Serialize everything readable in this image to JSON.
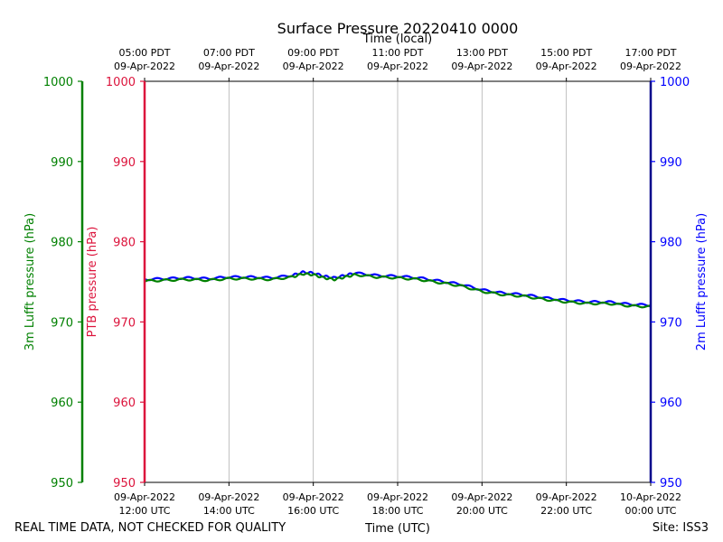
{
  "chart_data": {
    "type": "line",
    "title": "Surface Pressure 20220410 0000",
    "xlabel": "Time (UTC)",
    "top_xlabel": "Time (local)",
    "footer_left": "REAL TIME DATA, NOT CHECKED FOR QUALITY",
    "footer_right": "Site: ISS3",
    "x_range_hours": [
      0,
      12
    ],
    "bottom_ticks": [
      {
        "hour": 0,
        "date": "09-Apr-2022",
        "time": "12:00 UTC"
      },
      {
        "hour": 2,
        "date": "09-Apr-2022",
        "time": "14:00 UTC"
      },
      {
        "hour": 4,
        "date": "09-Apr-2022",
        "time": "16:00 UTC"
      },
      {
        "hour": 6,
        "date": "09-Apr-2022",
        "time": "18:00 UTC"
      },
      {
        "hour": 8,
        "date": "09-Apr-2022",
        "time": "20:00 UTC"
      },
      {
        "hour": 10,
        "date": "09-Apr-2022",
        "time": "22:00 UTC"
      },
      {
        "hour": 12,
        "date": "10-Apr-2022",
        "time": "00:00 UTC"
      }
    ],
    "top_ticks": [
      {
        "hour": 0,
        "time": "05:00 PDT",
        "date": "09-Apr-2022"
      },
      {
        "hour": 2,
        "time": "07:00 PDT",
        "date": "09-Apr-2022"
      },
      {
        "hour": 4,
        "time": "09:00 PDT",
        "date": "09-Apr-2022"
      },
      {
        "hour": 6,
        "time": "11:00 PDT",
        "date": "09-Apr-2022"
      },
      {
        "hour": 8,
        "time": "13:00 PDT",
        "date": "09-Apr-2022"
      },
      {
        "hour": 10,
        "time": "15:00 PDT",
        "date": "09-Apr-2022"
      },
      {
        "hour": 12,
        "time": "17:00 PDT",
        "date": "09-Apr-2022"
      }
    ],
    "y_axes": [
      {
        "name": "3m Lufft pressure (hPa)",
        "side": "far-left",
        "color": "#008000",
        "ylim": [
          950,
          1000
        ],
        "ticks": [
          950,
          960,
          970,
          980,
          990,
          1000
        ]
      },
      {
        "name": "PTB pressure (hPa)",
        "side": "left",
        "color": "#dc143c",
        "ylim": [
          950,
          1000
        ],
        "ticks": [
          950,
          960,
          970,
          980,
          990,
          1000
        ]
      },
      {
        "name": "2m Lufft pressure (hPa)",
        "side": "right",
        "color": "#0000ff",
        "ylim": [
          950,
          1000
        ],
        "ticks": [
          950,
          960,
          970,
          980,
          990,
          1000
        ]
      }
    ],
    "grid": "vertical",
    "series": [
      {
        "name": "2m Lufft pressure",
        "color": "#0000ff",
        "x": [
          0,
          0.5,
          1,
          1.5,
          2,
          2.5,
          3,
          3.5,
          3.75,
          4,
          4.25,
          4.5,
          4.75,
          5,
          5.5,
          6,
          6.5,
          7,
          7.5,
          8,
          8.5,
          9,
          9.5,
          10,
          10.5,
          11,
          11.5,
          12
        ],
        "y": [
          975.3,
          975.4,
          975.5,
          975.4,
          975.6,
          975.6,
          975.5,
          975.8,
          976.2,
          976.1,
          975.7,
          975.5,
          975.8,
          976.1,
          975.8,
          975.7,
          975.5,
          975.1,
          974.7,
          974.0,
          973.6,
          973.4,
          973.0,
          972.7,
          972.5,
          972.5,
          972.2,
          972.1
        ]
      },
      {
        "name": "3m Lufft pressure",
        "color": "#008000",
        "x": [
          0,
          0.5,
          1,
          1.5,
          2,
          2.5,
          3,
          3.5,
          3.75,
          4,
          4.25,
          4.5,
          4.75,
          5,
          5.5,
          6,
          6.5,
          7,
          7.5,
          8,
          8.5,
          9,
          9.5,
          10,
          10.5,
          11,
          11.5,
          12
        ],
        "y": [
          975.1,
          975.2,
          975.3,
          975.2,
          975.4,
          975.4,
          975.3,
          975.6,
          976.0,
          975.9,
          975.5,
          975.3,
          975.6,
          975.9,
          975.6,
          975.5,
          975.3,
          974.9,
          974.5,
          973.8,
          973.4,
          973.2,
          972.8,
          972.5,
          972.3,
          972.3,
          972.0,
          971.9
        ]
      }
    ]
  }
}
